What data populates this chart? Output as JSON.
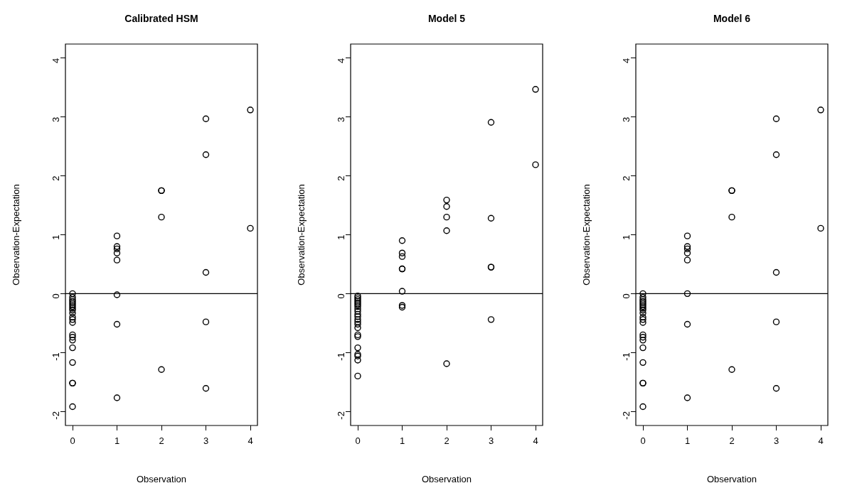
{
  "chart_data": [
    {
      "type": "scatter",
      "title": "Calibrated HSM",
      "xlabel": "Observation",
      "ylabel": "Observation-Expectation",
      "color": "#000000",
      "marker": "circle",
      "grid": false,
      "legend": false,
      "x": [
        0,
        0,
        0,
        0,
        0,
        0,
        0,
        0,
        0,
        0,
        0,
        0,
        0,
        0,
        0,
        0,
        0,
        0,
        0,
        0,
        0,
        1,
        1,
        1,
        1,
        1,
        1,
        1,
        1,
        2,
        2,
        2,
        2,
        3,
        3,
        3,
        3,
        3,
        4,
        4
      ],
      "values": [
        0,
        -0.06,
        -0.1,
        -0.13,
        -0.16,
        -0.19,
        -0.22,
        -0.25,
        -0.33,
        -0.4,
        -0.44,
        -0.49,
        -0.7,
        -0.74,
        -0.79,
        -0.92,
        -1.17,
        -1.52,
        -1.52,
        -1.92,
        -0.28,
        0.98,
        0.8,
        0.76,
        0.69,
        0.57,
        -0.02,
        -0.52,
        -1.77,
        1.75,
        1.75,
        1.3,
        -1.29,
        2.97,
        2.36,
        0.36,
        -0.48,
        -1.61,
        3.12,
        1.11
      ],
      "xlim": [
        -0.16,
        4.16
      ],
      "ylim": [
        -2.24,
        4.24
      ],
      "xticks": [
        0,
        1,
        2,
        3,
        4
      ],
      "yticks": [
        -2,
        -1,
        0,
        1,
        2,
        3,
        4
      ],
      "ref_lines": [
        {
          "axis": "y",
          "value": 0,
          "color": "#000000"
        }
      ]
    },
    {
      "type": "scatter",
      "title": "Model 5",
      "xlabel": "Observation",
      "ylabel": "Observation-Expectation",
      "color": "#000000",
      "marker": "circle",
      "grid": false,
      "legend": false,
      "x": [
        0,
        0,
        0,
        0,
        0,
        0,
        0,
        0,
        0,
        0,
        0,
        0,
        0,
        0,
        0,
        0,
        0,
        0,
        0,
        0,
        0,
        0,
        1,
        1,
        1,
        1,
        1,
        1,
        1,
        1,
        2,
        2,
        2,
        2,
        2,
        3,
        3,
        3,
        3,
        3,
        4,
        4
      ],
      "values": [
        -0.04,
        -0.07,
        -0.1,
        -0.13,
        -0.16,
        -0.19,
        -0.22,
        -0.26,
        -0.3,
        -0.35,
        -0.44,
        -0.48,
        -0.52,
        -0.58,
        -0.7,
        -0.73,
        -0.92,
        -1.03,
        -1.06,
        -1.13,
        -1.4,
        -0.39,
        0.9,
        0.69,
        0.63,
        0.42,
        0.42,
        0.04,
        -0.2,
        -0.23,
        1.59,
        1.48,
        1.3,
        1.07,
        -1.19,
        2.91,
        1.28,
        0.45,
        0.45,
        -0.44,
        3.47,
        2.19
      ],
      "xlim": [
        -0.16,
        4.16
      ],
      "ylim": [
        -2.24,
        4.24
      ],
      "xticks": [
        0,
        1,
        2,
        3,
        4
      ],
      "yticks": [
        -2,
        -1,
        0,
        1,
        2,
        3,
        4
      ],
      "ref_lines": [
        {
          "axis": "y",
          "value": 0,
          "color": "#000000"
        }
      ]
    },
    {
      "type": "scatter",
      "title": "Model 6",
      "xlabel": "Observation",
      "ylabel": "Observation-Expectation",
      "color": "#000000",
      "marker": "circle",
      "grid": false,
      "legend": false,
      "x": [
        0,
        0,
        0,
        0,
        0,
        0,
        0,
        0,
        0,
        0,
        0,
        0,
        0,
        0,
        0,
        0,
        0,
        0,
        0,
        0,
        0,
        1,
        1,
        1,
        1,
        1,
        1,
        1,
        1,
        2,
        2,
        2,
        2,
        3,
        3,
        3,
        3,
        3,
        4,
        4
      ],
      "values": [
        0,
        -0.06,
        -0.1,
        -0.13,
        -0.16,
        -0.19,
        -0.22,
        -0.25,
        -0.33,
        -0.4,
        -0.44,
        -0.49,
        -0.7,
        -0.74,
        -0.79,
        -0.92,
        -1.17,
        -1.52,
        -1.52,
        -1.92,
        -0.28,
        0.98,
        0.8,
        0.76,
        0.69,
        0.57,
        0.0,
        -0.52,
        -1.77,
        1.75,
        1.75,
        1.3,
        -1.29,
        2.97,
        2.36,
        0.36,
        -0.48,
        -1.61,
        3.12,
        1.11
      ],
      "xlim": [
        -0.16,
        4.16
      ],
      "ylim": [
        -2.24,
        4.24
      ],
      "xticks": [
        0,
        1,
        2,
        3,
        4
      ],
      "yticks": [
        -2,
        -1,
        0,
        1,
        2,
        3,
        4
      ],
      "ref_lines": [
        {
          "axis": "y",
          "value": 0,
          "color": "#000000"
        }
      ]
    }
  ]
}
